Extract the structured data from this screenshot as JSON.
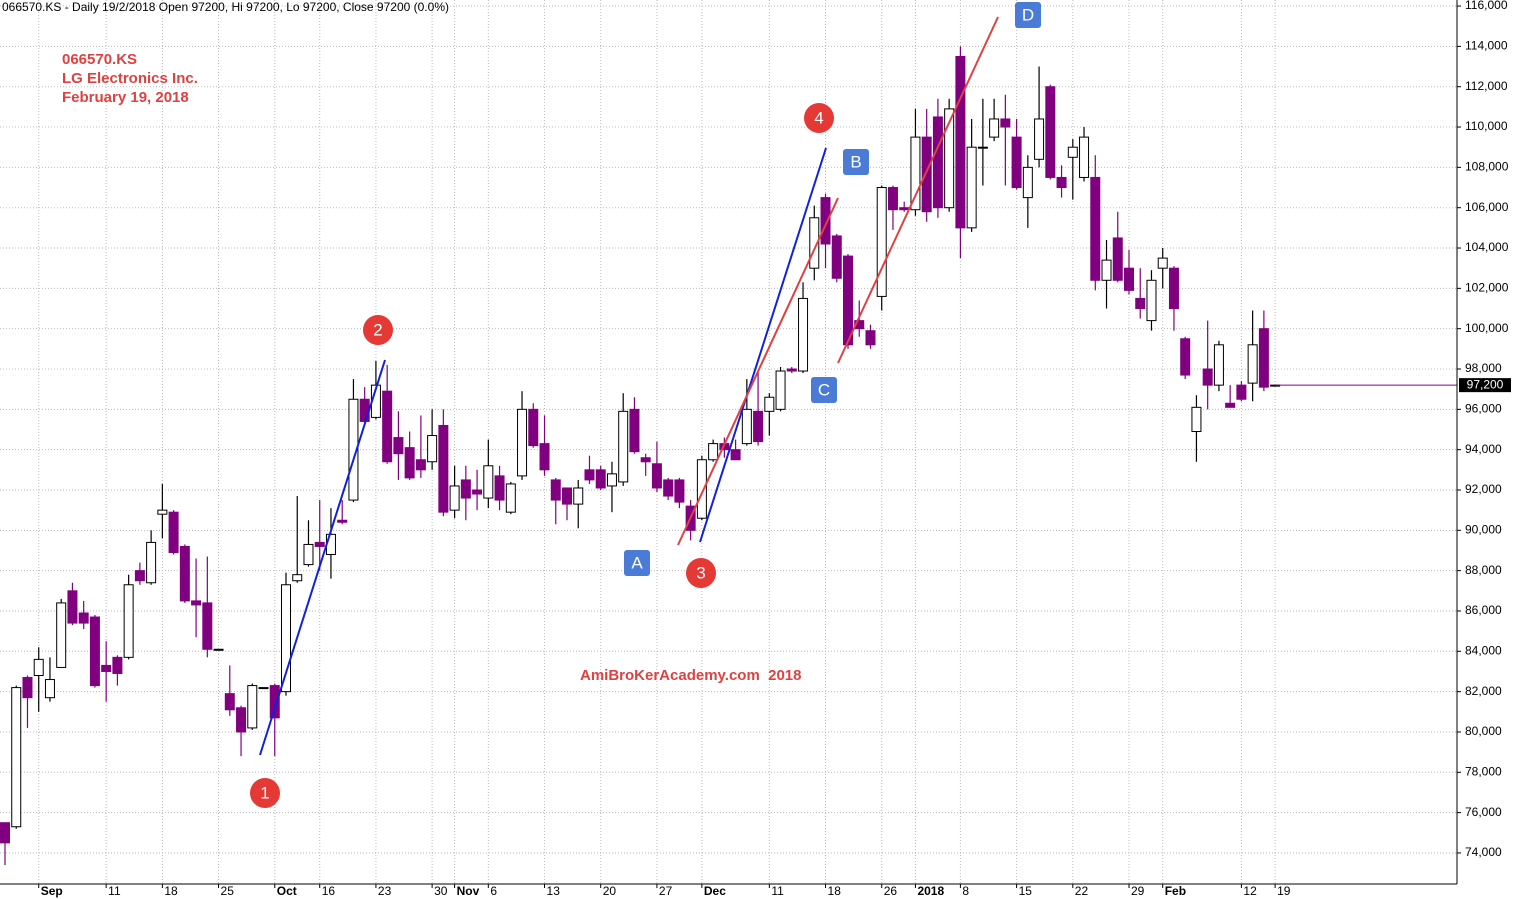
{
  "chart_data": {
    "type": "candlestick",
    "title": "066570.KS - Daily 19/2/2018 Open 97200, Hi 97200, Lo 97200, Close 97200 (0.0%)",
    "info": [
      "066570.KS",
      "LG Electronics Inc.",
      "February 19, 2018"
    ],
    "watermark": "AmiBroKerAcademy.com  2018",
    "annotations": {
      "circles": [
        "1",
        "2",
        "3",
        "4"
      ],
      "boxes": [
        "A",
        "B",
        "C",
        "D"
      ]
    },
    "up_color": "#ffffff",
    "down_color": "#800080",
    "grid": true,
    "categories": [
      null,
      null,
      null,
      "Sep",
      null,
      null,
      null,
      null,
      null,
      "11",
      null,
      null,
      null,
      null,
      "18",
      null,
      null,
      null,
      null,
      "25",
      null,
      null,
      null,
      null,
      "Oct",
      null,
      null,
      null,
      "16",
      null,
      null,
      null,
      null,
      "23",
      null,
      null,
      null,
      null,
      "30",
      null,
      "Nov",
      null,
      null,
      "6",
      null,
      null,
      null,
      null,
      "13",
      null,
      null,
      null,
      null,
      "20",
      null,
      null,
      null,
      null,
      "27",
      null,
      null,
      null,
      "Dec",
      null,
      null,
      null,
      null,
      null,
      "11",
      null,
      null,
      null,
      null,
      "18",
      null,
      null,
      null,
      null,
      "26",
      null,
      null,
      "2018",
      null,
      null,
      null,
      "8",
      null,
      null,
      null,
      null,
      "15",
      null,
      null,
      null,
      null,
      "22",
      null,
      null,
      null,
      null,
      "29",
      null,
      null,
      "Feb",
      null,
      null,
      null,
      null,
      null,
      null,
      "12",
      null,
      null,
      "19"
    ],
    "open": [
      75500,
      75300,
      82700,
      82800,
      81700,
      83200,
      87000,
      85900,
      85700,
      83300,
      83700,
      83700,
      88000,
      87400,
      90800,
      90900,
      89200,
      86500,
      86400,
      84100,
      81900,
      81200,
      80200,
      82200,
      82300,
      82000,
      87500,
      88300,
      89400,
      88800,
      90500,
      91500,
      96500,
      95600,
      96900,
      94600,
      94100,
      93500,
      93400,
      95200,
      91000,
      92500,
      92000,
      91600,
      92700,
      90900,
      92700,
      96000,
      94300,
      92500,
      92100,
      91300,
      93000,
      93000,
      92200,
      92400,
      96000,
      93600,
      93300,
      92500,
      92500,
      91200,
      90600,
      93500,
      94300,
      94000,
      94300,
      95900,
      95900,
      96000,
      98000,
      97900,
      103000,
      106500,
      104600,
      103600,
      100400,
      99900,
      101600,
      107000,
      106000,
      105900,
      109500,
      110500,
      106000,
      113500,
      105000,
      109000,
      109500,
      110400,
      109500,
      106500,
      108400,
      112000,
      107500,
      108500,
      107500,
      107500,
      102400,
      104500,
      103000,
      101500,
      100400,
      103000,
      103000,
      99500,
      94900,
      98000,
      97200,
      96300,
      97200,
      97300,
      100000,
      97200
    ],
    "high": [
      75500,
      82300,
      82800,
      84200,
      83700,
      86600,
      87400,
      86500,
      85800,
      84500,
      83800,
      87800,
      88400,
      90000,
      92300,
      91000,
      89300,
      88600,
      88700,
      84100,
      83300,
      81300,
      82400,
      82200,
      82400,
      87900,
      91700,
      90500,
      91500,
      91100,
      91500,
      97500,
      97100,
      98400,
      98200,
      95900,
      94900,
      95700,
      96000,
      96000,
      93200,
      93200,
      93000,
      94500,
      93200,
      92400,
      96900,
      96300,
      95700,
      92600,
      92100,
      92500,
      93700,
      93200,
      93400,
      96800,
      96600,
      93800,
      94400,
      92600,
      92600,
      91500,
      93700,
      94500,
      94600,
      94500,
      97500,
      97900,
      96800,
      98100,
      98100,
      102300,
      106100,
      106700,
      104700,
      103700,
      101400,
      100200,
      107100,
      107100,
      106300,
      110900,
      110900,
      111400,
      111400,
      114000,
      110400,
      111400,
      111400,
      111600,
      110400,
      108600,
      113000,
      112100,
      108100,
      109400,
      110000,
      108600,
      104400,
      105800,
      103900,
      103000,
      102900,
      104000,
      103100,
      99600,
      96700,
      100400,
      99400,
      97200,
      97400,
      100900,
      100900,
      97200
    ],
    "low": [
      73400,
      75200,
      80200,
      81000,
      81500,
      83200,
      85300,
      85100,
      82200,
      81500,
      82300,
      83600,
      87300,
      87300,
      89600,
      88800,
      86400,
      84700,
      83700,
      84100,
      80800,
      78800,
      80100,
      82200,
      78800,
      81800,
      87400,
      88200,
      88000,
      87600,
      90300,
      91400,
      95300,
      95500,
      93300,
      92500,
      92500,
      92600,
      93000,
      90700,
      90600,
      90500,
      91000,
      91100,
      91000,
      90800,
      92500,
      94100,
      92700,
      90300,
      90500,
      90100,
      92300,
      92000,
      90900,
      92200,
      93800,
      92700,
      91900,
      91500,
      91100,
      89500,
      90500,
      93400,
      93600,
      93500,
      94200,
      94200,
      94700,
      95900,
      97800,
      97800,
      102400,
      103000,
      102300,
      99000,
      99600,
      99000,
      100900,
      104900,
      105800,
      105600,
      105300,
      105500,
      105800,
      103500,
      104800,
      107100,
      109300,
      107100,
      106900,
      105000,
      108000,
      107400,
      106500,
      106400,
      107300,
      101900,
      101000,
      102300,
      101700,
      100500,
      99900,
      102000,
      99900,
      97500,
      93400,
      96000,
      96900,
      96100,
      96400,
      96400,
      96900,
      97200
    ],
    "close": [
      74500,
      82200,
      81700,
      83600,
      82600,
      86400,
      85400,
      85400,
      82300,
      83000,
      82900,
      87300,
      87500,
      89400,
      91000,
      88900,
      86500,
      86300,
      84100,
      84100,
      81100,
      80000,
      82300,
      82200,
      80700,
      87300,
      87800,
      89300,
      89200,
      89800,
      90400,
      96500,
      95400,
      97200,
      93400,
      93800,
      92600,
      93000,
      94700,
      90900,
      92200,
      91600,
      91800,
      93200,
      91500,
      92300,
      96000,
      94200,
      93000,
      91500,
      91300,
      92100,
      92500,
      92100,
      92800,
      95900,
      93900,
      93400,
      92100,
      91700,
      91400,
      90000,
      93500,
      94300,
      94000,
      93500,
      96000,
      94400,
      96600,
      97900,
      97900,
      101500,
      105500,
      104200,
      102500,
      99200,
      100000,
      99200,
      107000,
      105900,
      105900,
      109500,
      105800,
      106000,
      110900,
      105000,
      109000,
      109000,
      110400,
      110000,
      107000,
      108000,
      110400,
      107500,
      107000,
      109000,
      109500,
      102400,
      103400,
      102400,
      101900,
      101000,
      102400,
      103500,
      101000,
      97700,
      96100,
      97200,
      99200,
      96100,
      96500,
      99200,
      97100,
      97200
    ],
    "ylim": [
      72460,
      116300
    ],
    "yticks": [
      {
        "value": 74000,
        "label": "74,000"
      },
      {
        "value": 76000,
        "label": "76,000"
      },
      {
        "value": 78000,
        "label": "78,000"
      },
      {
        "value": 80000,
        "label": "80,000"
      },
      {
        "value": 82000,
        "label": "82,000"
      },
      {
        "value": 84000,
        "label": "84,000"
      },
      {
        "value": 86000,
        "label": "86,000"
      },
      {
        "value": 88000,
        "label": "88,000"
      },
      {
        "value": 90000,
        "label": "90,000"
      },
      {
        "value": 92000,
        "label": "92,000"
      },
      {
        "value": 94000,
        "label": "94,000"
      },
      {
        "value": 96000,
        "label": "96,000"
      },
      {
        "value": 98000,
        "label": "98,000"
      },
      {
        "value": 100000,
        "label": "100,000"
      },
      {
        "value": 102000,
        "label": "102,000"
      },
      {
        "value": 104000,
        "label": "104,000"
      },
      {
        "value": 106000,
        "label": "106,000"
      },
      {
        "value": 108000,
        "label": "108,000"
      },
      {
        "value": 110000,
        "label": "110,000"
      },
      {
        "value": 112000,
        "label": "112,000"
      },
      {
        "value": 114000,
        "label": "114,000"
      },
      {
        "value": 116000,
        "label": "116,000"
      }
    ],
    "last_price": {
      "value": 97200,
      "label": "97,200"
    }
  }
}
